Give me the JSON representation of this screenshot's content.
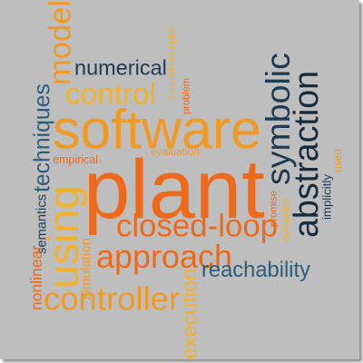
{
  "colors": {
    "background": "#bebebe",
    "dark_orange": "#ee6a1a",
    "orange": "#f09a26",
    "yellow": "#f4b12a",
    "slate_blue": "#2b5c7a",
    "navy": "#1d3a52",
    "dark_navy": "#162b3c"
  },
  "words": [
    {
      "id": "plant",
      "text": "plant",
      "color": "#ee6a1a",
      "rotated": false
    },
    {
      "id": "software",
      "text": "software",
      "color": "#f09a26",
      "rotated": false
    },
    {
      "id": "closed_loop",
      "text": "closed-loop",
      "color": "#ee6a1a",
      "rotated": false
    },
    {
      "id": "approach",
      "text": "approach",
      "color": "#ee6a1a",
      "rotated": false
    },
    {
      "id": "controller",
      "text": "controller",
      "color": "#f09a26",
      "rotated": false
    },
    {
      "id": "control",
      "text": "control",
      "color": "#f4b12a",
      "rotated": false
    },
    {
      "id": "numerical",
      "text": "numerical",
      "color": "#1d3a52",
      "rotated": false
    },
    {
      "id": "reachability",
      "text": "reachability",
      "color": "#2b5c7a",
      "rotated": false
    },
    {
      "id": "evaluation",
      "text": "evaluation",
      "color": "#f09a26",
      "rotated": false
    },
    {
      "id": "empirical",
      "text": "empirical",
      "color": "#ee6a1a",
      "rotated": false
    },
    {
      "id": "symbolic",
      "text": "symbolic",
      "color": "#1d3a52",
      "rotated": true
    },
    {
      "id": "abstraction",
      "text": "abstraction",
      "color": "#162b3c",
      "rotated": true
    },
    {
      "id": "model",
      "text": "model",
      "color": "#f09a26",
      "rotated": true
    },
    {
      "id": "using",
      "text": "using",
      "color": "#f4b12a",
      "rotated": true
    },
    {
      "id": "techniques",
      "text": "techniques",
      "color": "#2b5c7a",
      "rotated": true
    },
    {
      "id": "execution",
      "text": "execution",
      "color": "#f4b12a",
      "rotated": true
    },
    {
      "id": "semantics",
      "text": "semantics",
      "color": "#1d3a52",
      "rotated": true
    },
    {
      "id": "nonlinear",
      "text": "nonlinear",
      "color": "#ee6a1a",
      "rotated": true
    },
    {
      "id": "simulation",
      "text": "simulation",
      "color": "#f09a26",
      "rotated": true
    },
    {
      "id": "counterexamples",
      "text": "counterexamples",
      "color": "#f4b12a",
      "rotated": true
    },
    {
      "id": "problem",
      "text": "problem",
      "color": "#ee6a1a",
      "rotated": true
    },
    {
      "id": "promise",
      "text": "promise",
      "color": "#ee6a1a",
      "rotated": true
    },
    {
      "id": "dynamics",
      "text": "dynamics",
      "color": "#f4b12a",
      "rotated": true
    },
    {
      "id": "implicitly",
      "text": "implicitly",
      "color": "#1d3a52",
      "rotated": true
    },
    {
      "id": "used",
      "text": "used",
      "color": "#f09a26",
      "rotated": true
    }
  ]
}
